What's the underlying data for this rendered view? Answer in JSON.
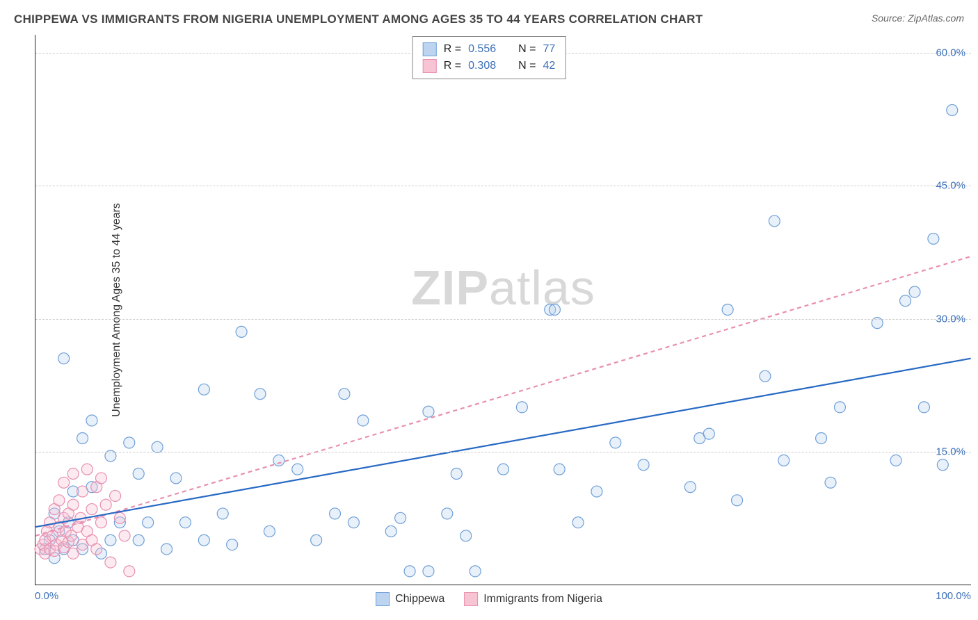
{
  "title": "CHIPPEWA VS IMMIGRANTS FROM NIGERIA UNEMPLOYMENT AMONG AGES 35 TO 44 YEARS CORRELATION CHART",
  "source": "Source: ZipAtlas.com",
  "ylabel": "Unemployment Among Ages 35 to 44 years",
  "watermark_a": "ZIP",
  "watermark_b": "atlas",
  "chart": {
    "type": "scatter",
    "background_color": "#ffffff",
    "grid_color": "#cccccc",
    "axis_color": "#222222",
    "tick_color": "#3b6fb6",
    "title_fontsize": 17,
    "label_fontsize": 16,
    "tick_fontsize": 15,
    "xlim": [
      0,
      100
    ],
    "ylim": [
      0,
      62
    ],
    "xticks": [
      {
        "pos": 0,
        "label": "0.0%"
      },
      {
        "pos": 100,
        "label": "100.0%"
      }
    ],
    "yticks": [
      {
        "pos": 15,
        "label": "15.0%"
      },
      {
        "pos": 30,
        "label": "30.0%"
      },
      {
        "pos": 45,
        "label": "45.0%"
      },
      {
        "pos": 60,
        "label": "60.0%"
      }
    ],
    "marker_radius": 8,
    "marker_stroke_width": 1.2,
    "marker_fill_opacity": 0.35,
    "trend_line_width": 2.2
  },
  "stats_legend": {
    "rows": [
      {
        "swatch_fill": "#bcd4ef",
        "swatch_stroke": "#6f9fd8",
        "r_label": "R =",
        "r_value": "0.556",
        "n_label": "N =",
        "n_value": "77"
      },
      {
        "swatch_fill": "#f6c4d3",
        "swatch_stroke": "#e88fb0",
        "r_label": "R =",
        "r_value": "0.308",
        "n_label": "N =",
        "n_value": "42"
      }
    ]
  },
  "series_legend": {
    "items": [
      {
        "swatch_fill": "#bcd4ef",
        "swatch_stroke": "#6f9fd8",
        "label": "Chippewa"
      },
      {
        "swatch_fill": "#f6c4d3",
        "swatch_stroke": "#e88fb0",
        "label": "Immigrants from Nigeria"
      }
    ]
  },
  "series": [
    {
      "name": "Chippewa",
      "fill": "#bcd4ef",
      "stroke": "#6f9fd8",
      "trend": {
        "x1": 0,
        "y1": 6.5,
        "x2": 100,
        "y2": 25.5,
        "color": "#2769c4",
        "dash": "none"
      },
      "points": [
        [
          1,
          4
        ],
        [
          1.5,
          5
        ],
        [
          2,
          3
        ],
        [
          2,
          8
        ],
        [
          2.5,
          6
        ],
        [
          3,
          4
        ],
        [
          3,
          25.5
        ],
        [
          3.5,
          7
        ],
        [
          4,
          10.5
        ],
        [
          4,
          5
        ],
        [
          5,
          16.5
        ],
        [
          5,
          4
        ],
        [
          6,
          11
        ],
        [
          6,
          18.5
        ],
        [
          7,
          3.5
        ],
        [
          8,
          5
        ],
        [
          8,
          14.5
        ],
        [
          9,
          7
        ],
        [
          10,
          16
        ],
        [
          11,
          5
        ],
        [
          11,
          12.5
        ],
        [
          12,
          7
        ],
        [
          13,
          15.5
        ],
        [
          14,
          4
        ],
        [
          15,
          12
        ],
        [
          16,
          7
        ],
        [
          18,
          5
        ],
        [
          18,
          22
        ],
        [
          20,
          8
        ],
        [
          21,
          4.5
        ],
        [
          22,
          28.5
        ],
        [
          24,
          21.5
        ],
        [
          25,
          6
        ],
        [
          26,
          14
        ],
        [
          28,
          13
        ],
        [
          30,
          5
        ],
        [
          32,
          8
        ],
        [
          33,
          21.5
        ],
        [
          34,
          7
        ],
        [
          35,
          18.5
        ],
        [
          38,
          6
        ],
        [
          39,
          7.5
        ],
        [
          40,
          1.5
        ],
        [
          42,
          1.5
        ],
        [
          42,
          19.5
        ],
        [
          44,
          8
        ],
        [
          45,
          12.5
        ],
        [
          46,
          5.5
        ],
        [
          47,
          1.5
        ],
        [
          50,
          13
        ],
        [
          52,
          20
        ],
        [
          55,
          31
        ],
        [
          55.5,
          31
        ],
        [
          56,
          13
        ],
        [
          58,
          7
        ],
        [
          60,
          10.5
        ],
        [
          62,
          16
        ],
        [
          65,
          13.5
        ],
        [
          70,
          11
        ],
        [
          71,
          16.5
        ],
        [
          72,
          17
        ],
        [
          74,
          31
        ],
        [
          75,
          9.5
        ],
        [
          78,
          23.5
        ],
        [
          79,
          41
        ],
        [
          80,
          14
        ],
        [
          84,
          16.5
        ],
        [
          85,
          11.5
        ],
        [
          86,
          20
        ],
        [
          90,
          29.5
        ],
        [
          92,
          14
        ],
        [
          93,
          32
        ],
        [
          94,
          33
        ],
        [
          95,
          20
        ],
        [
          96,
          39
        ],
        [
          97,
          13.5
        ],
        [
          98,
          53.5
        ]
      ]
    },
    {
      "name": "Immigrants from Nigeria",
      "fill": "#f6c4d3",
      "stroke": "#e88fb0",
      "trend": {
        "x1": 0,
        "y1": 5.5,
        "x2": 100,
        "y2": 37,
        "color": "#e88fb0",
        "dash": "6,5"
      },
      "points": [
        [
          0.5,
          4
        ],
        [
          0.8,
          4.5
        ],
        [
          1,
          3.5
        ],
        [
          1,
          5
        ],
        [
          1.2,
          6
        ],
        [
          1.5,
          4
        ],
        [
          1.5,
          7
        ],
        [
          1.8,
          5.5
        ],
        [
          2,
          3.8
        ],
        [
          2,
          8.5
        ],
        [
          2.2,
          4.5
        ],
        [
          2.5,
          6.5
        ],
        [
          2.5,
          9.5
        ],
        [
          2.8,
          5
        ],
        [
          3,
          4.2
        ],
        [
          3,
          7.5
        ],
        [
          3,
          11.5
        ],
        [
          3.2,
          6
        ],
        [
          3.5,
          4.8
        ],
        [
          3.5,
          8
        ],
        [
          3.8,
          5.5
        ],
        [
          4,
          3.5
        ],
        [
          4,
          9
        ],
        [
          4,
          12.5
        ],
        [
          4.5,
          6.5
        ],
        [
          4.8,
          7.5
        ],
        [
          5,
          4.5
        ],
        [
          5,
          10.5
        ],
        [
          5.5,
          13
        ],
        [
          5.5,
          6
        ],
        [
          6,
          5
        ],
        [
          6,
          8.5
        ],
        [
          6.5,
          11
        ],
        [
          6.5,
          4
        ],
        [
          7,
          7
        ],
        [
          7,
          12
        ],
        [
          7.5,
          9
        ],
        [
          8,
          2.5
        ],
        [
          8.5,
          10
        ],
        [
          9,
          7.5
        ],
        [
          9.5,
          5.5
        ],
        [
          10,
          1.5
        ]
      ]
    }
  ]
}
